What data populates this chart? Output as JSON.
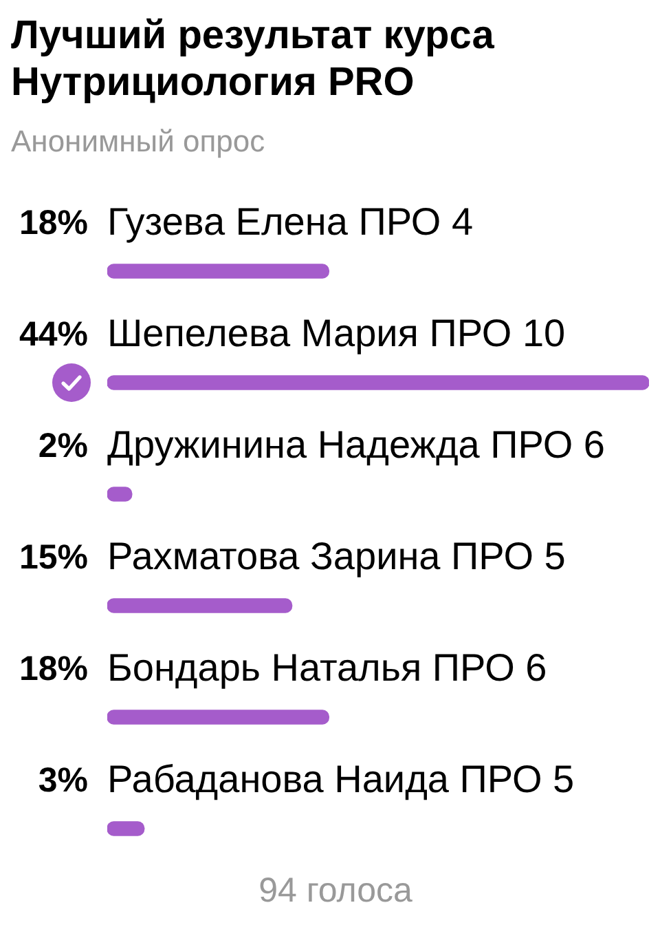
{
  "chart_data": {
    "type": "bar",
    "orientation": "horizontal",
    "title": "Лучший результат курса Нутрициология PRO",
    "subtitle": "Анонимный опрос",
    "categories": [
      "Гузева Елена ПРО 4",
      "Шепелева Мария ПРО 10",
      "Дружинина Надежда ПРО 6",
      "Рахматова Зарина ПРО 5",
      "Бондарь Наталья ПРО 6",
      "Рабаданова Наида ПРО 5"
    ],
    "values": [
      18,
      44,
      2,
      15,
      18,
      3
    ],
    "color": "#a55ccb",
    "value_labels": [
      "18%",
      "44%",
      "2%",
      "15%",
      "18%",
      "3%"
    ],
    "annotations": [
      "94 голоса"
    ]
  }
}
